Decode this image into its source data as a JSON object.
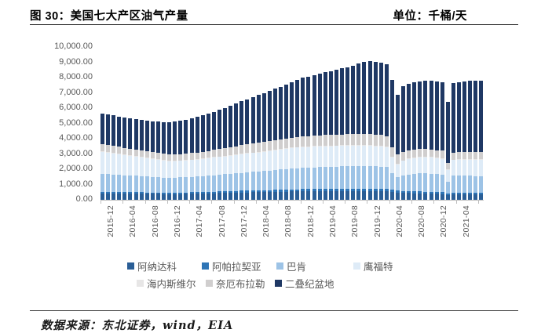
{
  "header": {
    "title": "图 30：美国七大产区油气产量",
    "unit_label": "单位：千桶/天"
  },
  "footer": {
    "source": "数据来源：东北证券，wind，EIA"
  },
  "chart_data": {
    "type": "bar",
    "stacked": true,
    "title": "美国七大产区油气产量",
    "ylabel": "千桶/天",
    "ylim": [
      0,
      10000
    ],
    "grid": false,
    "legend_position": "bottom",
    "y_tick_labels": [
      "10,000.00",
      "9,000.00",
      "8,000.00",
      "7,000.00",
      "6,000.00",
      "5,000.00",
      "4,000.00",
      "3,000.00",
      "2,000.00",
      "1,000.00",
      "0.00"
    ],
    "x": [
      "2015-12",
      "2016-01",
      "2016-02",
      "2016-03",
      "2016-04",
      "2016-05",
      "2016-06",
      "2016-07",
      "2016-08",
      "2016-09",
      "2016-10",
      "2016-11",
      "2016-12",
      "2017-01",
      "2017-02",
      "2017-03",
      "2017-04",
      "2017-05",
      "2017-06",
      "2017-07",
      "2017-08",
      "2017-09",
      "2017-10",
      "2017-11",
      "2017-12",
      "2018-01",
      "2018-02",
      "2018-03",
      "2018-04",
      "2018-05",
      "2018-06",
      "2018-07",
      "2018-08",
      "2018-09",
      "2018-10",
      "2018-11",
      "2018-12",
      "2019-01",
      "2019-02",
      "2019-03",
      "2019-04",
      "2019-05",
      "2019-06",
      "2019-07",
      "2019-08",
      "2019-09",
      "2019-10",
      "2019-11",
      "2019-12",
      "2020-01",
      "2020-02",
      "2020-03",
      "2020-04",
      "2020-05",
      "2020-06",
      "2020-07",
      "2020-08",
      "2020-09",
      "2020-10",
      "2020-11",
      "2020-12",
      "2021-01",
      "2021-02",
      "2021-03",
      "2021-04",
      "2021-05",
      "2021-06",
      "2021-07",
      "2021-08"
    ],
    "x_tick_interval": 4,
    "x_tick_labels_shown": [
      "2015-12",
      "2016-04",
      "2016-08",
      "2016-12",
      "2017-04",
      "2017-08",
      "2017-12",
      "2018-04",
      "2018-08",
      "2018-12",
      "2019-04",
      "2019-08",
      "2019-12",
      "2020-04",
      "2020-08",
      "2020-12",
      "2021-04"
    ],
    "legend_rows": [
      [
        "阿纳达科",
        "阿帕拉契亚",
        "巴肯",
        "鹰福特"
      ],
      [
        "海内斯维尔",
        "奈厄布拉勒",
        "二叠纪盆地"
      ]
    ],
    "series": [
      {
        "name": "阿纳达科",
        "color": "#2A5E96",
        "values": [
          430,
          426,
          422,
          418,
          414,
          410,
          405,
          400,
          395,
          390,
          387,
          383,
          380,
          382,
          385,
          390,
          396,
          403,
          411,
          420,
          430,
          440,
          450,
          460,
          470,
          478,
          485,
          493,
          500,
          508,
          515,
          523,
          530,
          538,
          545,
          553,
          560,
          563,
          566,
          570,
          573,
          576,
          578,
          580,
          581,
          582,
          582,
          581,
          580,
          575,
          570,
          560,
          520,
          470,
          455,
          445,
          435,
          425,
          415,
          405,
          390,
          380,
          300,
          365,
          360,
          355,
          350,
          345,
          340
        ]
      },
      {
        "name": "阿帕拉契亚",
        "color": "#2E75B6",
        "values": [
          100,
          98,
          97,
          96,
          95,
          94,
          93,
          92,
          91,
          90,
          90,
          90,
          90,
          92,
          94,
          96,
          98,
          100,
          102,
          104,
          106,
          108,
          110,
          112,
          114,
          116,
          118,
          120,
          122,
          124,
          126,
          128,
          130,
          132,
          134,
          136,
          138,
          140,
          141,
          142,
          143,
          144,
          145,
          146,
          147,
          148,
          149,
          150,
          150,
          150,
          150,
          148,
          140,
          130,
          128,
          126,
          125,
          124,
          123,
          122,
          121,
          120,
          100,
          118,
          118,
          117,
          117,
          116,
          115
        ]
      },
      {
        "name": "巴肯",
        "color": "#9DC3E6",
        "values": [
          1160,
          1145,
          1130,
          1115,
          1100,
          1085,
          1070,
          1055,
          1040,
          1020,
          1005,
          990,
          980,
          985,
          990,
          1000,
          1010,
          1025,
          1040,
          1060,
          1080,
          1100,
          1115,
          1135,
          1150,
          1170,
          1190,
          1210,
          1230,
          1250,
          1270,
          1295,
          1320,
          1345,
          1365,
          1385,
          1400,
          1410,
          1420,
          1430,
          1440,
          1450,
          1455,
          1460,
          1465,
          1470,
          1475,
          1480,
          1475,
          1460,
          1450,
          1430,
          1100,
          880,
          1000,
          1080,
          1130,
          1180,
          1200,
          1190,
          1170,
          1150,
          800,
          1090,
          1100,
          1105,
          1105,
          1100,
          1100
        ]
      },
      {
        "name": "鹰福特",
        "color": "#DEEBF7",
        "values": [
          1450,
          1420,
          1390,
          1360,
          1330,
          1300,
          1270,
          1240,
          1210,
          1180,
          1145,
          1110,
          1080,
          1075,
          1075,
          1080,
          1090,
          1100,
          1110,
          1125,
          1140,
          1155,
          1165,
          1180,
          1190,
          1205,
          1220,
          1235,
          1250,
          1265,
          1280,
          1295,
          1310,
          1320,
          1330,
          1340,
          1350,
          1350,
          1348,
          1345,
          1342,
          1340,
          1338,
          1335,
          1332,
          1330,
          1326,
          1322,
          1320,
          1310,
          1300,
          1280,
          1000,
          850,
          960,
          1000,
          1020,
          1040,
          1050,
          1050,
          1050,
          1040,
          750,
          1020,
          1030,
          1040,
          1045,
          1050,
          1050
        ]
      },
      {
        "name": "海内斯维尔",
        "color": "#E7E6E6",
        "values": [
          45,
          44,
          44,
          43,
          43,
          42,
          42,
          42,
          41,
          41,
          41,
          40,
          40,
          40,
          40,
          41,
          41,
          41,
          42,
          42,
          42,
          43,
          43,
          44,
          44,
          44,
          44,
          45,
          45,
          45,
          45,
          46,
          46,
          46,
          47,
          47,
          47,
          47,
          47,
          48,
          48,
          48,
          48,
          48,
          49,
          49,
          49,
          49,
          49,
          49,
          49,
          48,
          47,
          46,
          46,
          46,
          46,
          46,
          46,
          46,
          46,
          46,
          38,
          45,
          45,
          45,
          45,
          45,
          45
        ]
      },
      {
        "name": "奈厄布拉勒",
        "color": "#D0CECE",
        "values": [
          450,
          445,
          440,
          433,
          427,
          420,
          415,
          410,
          406,
          403,
          401,
          400,
          400,
          405,
          410,
          418,
          426,
          435,
          445,
          456,
          468,
          480,
          495,
          515,
          540,
          555,
          565,
          575,
          585,
          595,
          605,
          615,
          625,
          635,
          645,
          652,
          660,
          668,
          675,
          682,
          690,
          698,
          705,
          712,
          718,
          725,
          730,
          735,
          740,
          730,
          720,
          700,
          620,
          580,
          560,
          545,
          530,
          515,
          500,
          490,
          480,
          475,
          400,
          465,
          462,
          463,
          465,
          468,
          470
        ]
      },
      {
        "name": "二叠纪盆地",
        "color": "#1F3864",
        "values": [
          2020,
          2010,
          2000,
          1995,
          1990,
          1990,
          1995,
          2000,
          2010,
          2025,
          2045,
          2080,
          2120,
          2150,
          2185,
          2225,
          2270,
          2320,
          2375,
          2435,
          2500,
          2565,
          2635,
          2715,
          2800,
          2880,
          2960,
          3040,
          3120,
          3200,
          3280,
          3360,
          3440,
          3530,
          3630,
          3730,
          3830,
          3900,
          3970,
          4040,
          4110,
          4180,
          4250,
          4320,
          4390,
          4460,
          4640,
          4720,
          4780,
          4760,
          4740,
          4700,
          4400,
          3900,
          4280,
          4350,
          4400,
          4440,
          4460,
          4470,
          4480,
          4500,
          4000,
          4550,
          4600,
          4640,
          4670,
          4690,
          4700
        ]
      }
    ]
  }
}
